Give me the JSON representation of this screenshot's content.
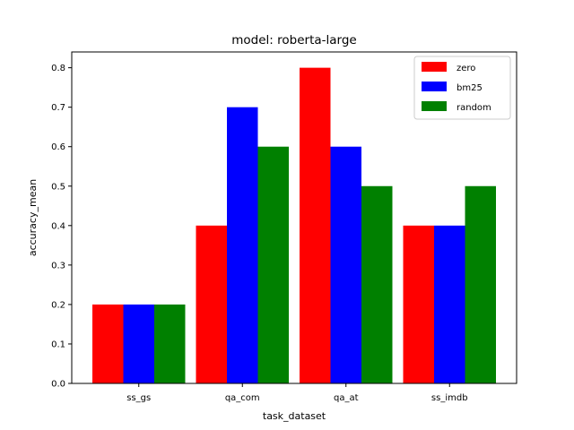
{
  "chart_data": {
    "type": "bar",
    "title": "model: roberta-large",
    "xlabel": "task_dataset",
    "ylabel": "accuracy_mean",
    "categories": [
      "ss_gs",
      "qa_com",
      "qa_at",
      "ss_imdb"
    ],
    "series": [
      {
        "name": "zero",
        "color": "#ff0000",
        "values": [
          0.2,
          0.4,
          0.8,
          0.4
        ]
      },
      {
        "name": "bm25",
        "color": "#0000ff",
        "values": [
          0.2,
          0.7,
          0.6,
          0.4
        ]
      },
      {
        "name": "random",
        "color": "#008000",
        "values": [
          0.2,
          0.6,
          0.5,
          0.5
        ]
      }
    ],
    "ylim": [
      0,
      0.84
    ],
    "yticks": [
      "0.0",
      "0.1",
      "0.2",
      "0.3",
      "0.4",
      "0.5",
      "0.6",
      "0.7",
      "0.8"
    ],
    "grid": false,
    "legend_position": "top-right"
  }
}
